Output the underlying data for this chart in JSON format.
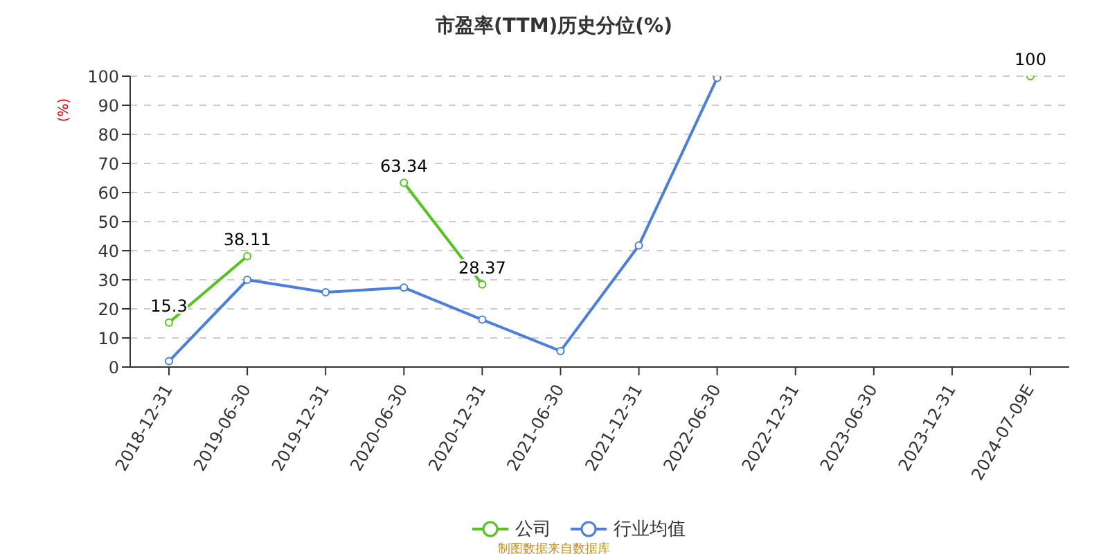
{
  "chart_data": {
    "type": "line",
    "title": "市盈率(TTM)历史分位(%)",
    "ylabel": "(%)",
    "categories": [
      "2018-12-31",
      "2019-06-30",
      "2019-12-31",
      "2020-06-30",
      "2020-12-31",
      "2021-06-30",
      "2021-12-31",
      "2022-06-30",
      "2022-12-31",
      "2023-06-30",
      "2023-12-31",
      "2024-07-09E"
    ],
    "series": [
      {
        "name": "公司",
        "color": "#52c41a",
        "values": [
          15.3,
          38.11,
          null,
          63.34,
          28.37,
          null,
          null,
          null,
          null,
          null,
          null,
          100
        ],
        "value_labels": [
          "15.3",
          "38.11",
          null,
          "63.34",
          "28.37",
          null,
          null,
          null,
          null,
          null,
          null,
          "100"
        ]
      },
      {
        "name": "行业均值",
        "color": "#4a7ee0",
        "values": [
          2,
          30,
          25.7,
          27.3,
          16.3,
          5.5,
          41.8,
          99.4,
          null,
          null,
          null,
          null
        ]
      }
    ],
    "ylim": [
      0,
      100
    ],
    "yticks": [
      0,
      10,
      20,
      30,
      40,
      50,
      60,
      70,
      80,
      90,
      100
    ],
    "grid": "y",
    "legend": "bottom",
    "marker": "circle",
    "line_style": "solid",
    "annotations": [
      "制图数据来自数据库"
    ]
  }
}
